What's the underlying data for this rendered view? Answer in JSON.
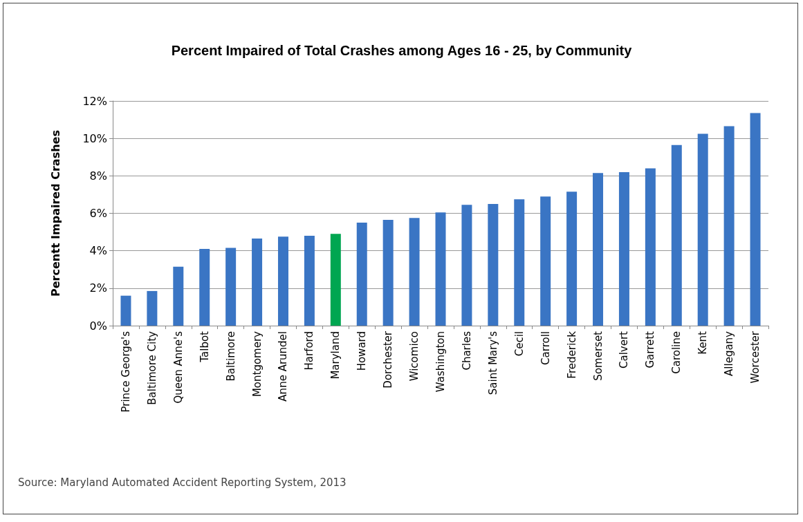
{
  "chart_data": {
    "type": "bar",
    "title": "Percent Impaired of Total Crashes among Ages 16 - 25, by Community",
    "ylabel": "Percentt Impaired Crashes",
    "categories": [
      "Prince George's",
      "Baltimore City",
      "Queen Anne's",
      "Talbot",
      "Baltimore",
      "Montgomery",
      "Anne Arundel",
      "Harford",
      "Maryland",
      "Howard",
      "Dorchester",
      "Wicomico",
      "Washington",
      "Charles",
      "Saint Mary's",
      "Cecil",
      "Carroll",
      "Frederick",
      "Somerset",
      "Calvert",
      "Garrett",
      "Caroline",
      "Kent",
      "Allegany",
      "Worcester"
    ],
    "values": [
      1.6,
      1.85,
      3.15,
      4.1,
      4.15,
      4.65,
      4.75,
      4.8,
      4.9,
      5.5,
      5.65,
      5.75,
      6.05,
      6.45,
      6.5,
      6.75,
      6.9,
      7.15,
      8.15,
      8.2,
      8.4,
      9.65,
      10.25,
      10.65,
      11.35
    ],
    "colors": [
      "#3a75c4",
      "#3a75c4",
      "#3a75c4",
      "#3a75c4",
      "#3a75c4",
      "#3a75c4",
      "#3a75c4",
      "#3a75c4",
      "#00a651",
      "#3a75c4",
      "#3a75c4",
      "#3a75c4",
      "#3a75c4",
      "#3a75c4",
      "#3a75c4",
      "#3a75c4",
      "#3a75c4",
      "#3a75c4",
      "#3a75c4",
      "#3a75c4",
      "#3a75c4",
      "#3a75c4",
      "#3a75c4",
      "#3a75c4",
      "#3a75c4"
    ],
    "ylim": [
      0,
      12
    ],
    "yticks": [
      {
        "value": 0,
        "label": "0%"
      },
      {
        "value": 2,
        "label": "2%"
      },
      {
        "value": 4,
        "label": "4%"
      },
      {
        "value": 6,
        "label": "6%"
      },
      {
        "value": 8,
        "label": "8%"
      },
      {
        "value": 10,
        "label": "10%"
      },
      {
        "value": 12,
        "label": "12%"
      }
    ],
    "grid": "y",
    "annotations": [
      "Source: Maryland Automated Accident Reporting System, 2013"
    ]
  }
}
